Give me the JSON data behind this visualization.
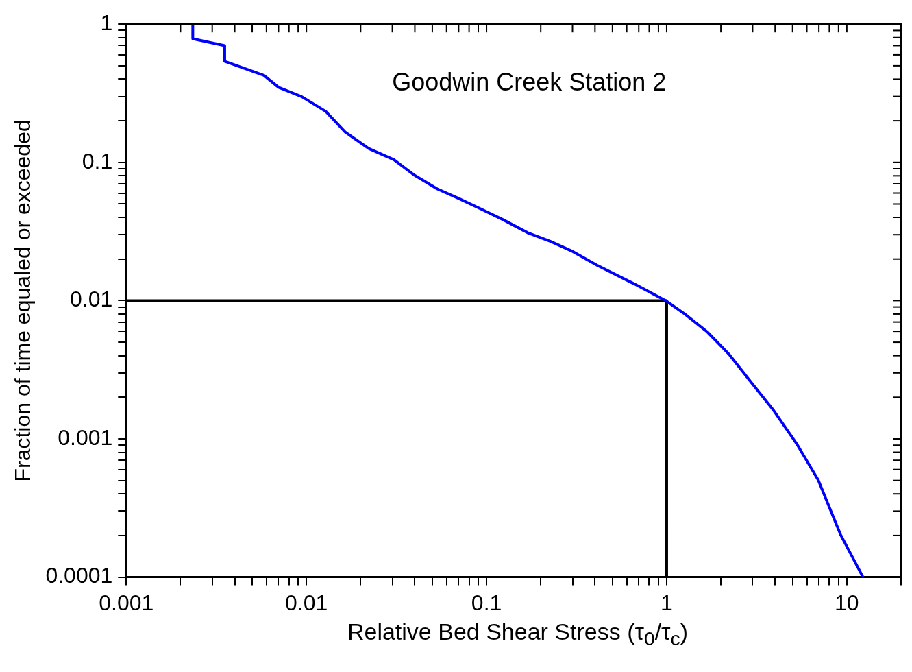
{
  "chart_data": {
    "type": "line",
    "xlabel": "Relative Bed Shear Stress (τ$_{0}$/τ$_{c}$)",
    "ylabel": "Fraction of time equaled or exceeded",
    "annotations": [
      "Goodwin Creek Station 2"
    ],
    "log": "xy",
    "grid": false,
    "legend": false,
    "marker": "none",
    "line_style": "solid",
    "xlim": [
      0.001,
      20
    ],
    "ylim": [
      0.0001,
      1
    ],
    "xticks": [
      0.001,
      {
        "value": 0.002,
        "label": null
      },
      {
        "value": 0.003,
        "label": null
      },
      {
        "value": 0.004,
        "label": null
      },
      {
        "value": 0.005,
        "label": null
      },
      {
        "value": 0.006,
        "label": null
      },
      {
        "value": 0.007,
        "label": null
      },
      {
        "value": 0.008,
        "label": null
      },
      {
        "value": 0.009,
        "label": null
      },
      0.01,
      {
        "value": 0.02,
        "label": null
      },
      {
        "value": 0.03,
        "label": null
      },
      {
        "value": 0.04,
        "label": null
      },
      {
        "value": 0.05,
        "label": null
      },
      {
        "value": 0.06,
        "label": null
      },
      {
        "value": 0.07,
        "label": null
      },
      {
        "value": 0.08,
        "label": null
      },
      {
        "value": 0.09,
        "label": null
      },
      0.1,
      {
        "value": 0.2,
        "label": null
      },
      {
        "value": 0.3,
        "label": null
      },
      {
        "value": 0.4,
        "label": null
      },
      {
        "value": 0.5,
        "label": null
      },
      {
        "value": 0.6,
        "label": null
      },
      {
        "value": 0.7,
        "label": null
      },
      {
        "value": 0.8,
        "label": null
      },
      {
        "value": 0.9,
        "label": null
      },
      1,
      {
        "value": 2,
        "label": null
      },
      {
        "value": 3,
        "label": null
      },
      {
        "value": 4,
        "label": null
      },
      {
        "value": 5,
        "label": null
      },
      {
        "value": 6,
        "label": null
      },
      {
        "value": 7,
        "label": null
      },
      {
        "value": 8,
        "label": null
      },
      {
        "value": 9,
        "label": null
      },
      10,
      {
        "value": 20,
        "label": null
      }
    ],
    "yticks": [
      0.0001,
      {
        "value": 0.0002,
        "label": null
      },
      {
        "value": 0.0003,
        "label": null
      },
      {
        "value": 0.0004,
        "label": null
      },
      {
        "value": 0.0005,
        "label": null
      },
      {
        "value": 0.0006,
        "label": null
      },
      {
        "value": 0.0007,
        "label": null
      },
      {
        "value": 0.0008,
        "label": null
      },
      {
        "value": 0.0009,
        "label": null
      },
      0.001,
      {
        "value": 0.002,
        "label": null
      },
      {
        "value": 0.003,
        "label": null
      },
      {
        "value": 0.004,
        "label": null
      },
      {
        "value": 0.005,
        "label": null
      },
      {
        "value": 0.006,
        "label": null
      },
      {
        "value": 0.007,
        "label": null
      },
      {
        "value": 0.008,
        "label": null
      },
      {
        "value": 0.009,
        "label": null
      },
      0.01,
      {
        "value": 0.02,
        "label": null
      },
      {
        "value": 0.03,
        "label": null
      },
      {
        "value": 0.04,
        "label": null
      },
      {
        "value": 0.05,
        "label": null
      },
      {
        "value": 0.06,
        "label": null
      },
      {
        "value": 0.07,
        "label": null
      },
      {
        "value": 0.08,
        "label": null
      },
      {
        "value": 0.09,
        "label": null
      },
      0.1,
      {
        "value": 0.2,
        "label": null
      },
      {
        "value": 0.3,
        "label": null
      },
      {
        "value": 0.4,
        "label": null
      },
      {
        "value": 0.5,
        "label": null
      },
      {
        "value": 0.6,
        "label": null
      },
      {
        "value": 0.7,
        "label": null
      },
      {
        "value": 0.8,
        "label": null
      },
      {
        "value": 0.9,
        "label": null
      },
      1
    ],
    "series": [
      {
        "color": "#0000ff",
        "x": [
          0.00234,
          0.00234,
          0.00352,
          0.00352,
          0.00581,
          0.00701,
          0.00941,
          0.0128,
          0.0164,
          0.0222,
          0.0306,
          0.0397,
          0.0533,
          0.0697,
          0.0944,
          0.123,
          0.17,
          0.227,
          0.296,
          0.412,
          0.662,
          1.0,
          1.26,
          1.68,
          2.21,
          2.97,
          3.92,
          5.26,
          6.94,
          9.23,
          12.3
        ],
        "values": [
          1,
          0.784,
          0.7,
          0.538,
          0.426,
          0.349,
          0.299,
          0.234,
          0.166,
          0.126,
          0.1045,
          0.081,
          0.0643,
          0.055,
          0.0456,
          0.0386,
          0.0309,
          0.0268,
          0.0229,
          0.018,
          0.0132,
          0.0099,
          0.008,
          0.00594,
          0.00412,
          0.00253,
          0.00161,
          0.000925,
          0.000504,
          0.000203,
          0.0001
        ]
      },
      {
        "color": "#000000",
        "x": [
          0.001,
          1,
          1
        ],
        "values": [
          0.01,
          0.01,
          0.0001
        ]
      }
    ]
  }
}
